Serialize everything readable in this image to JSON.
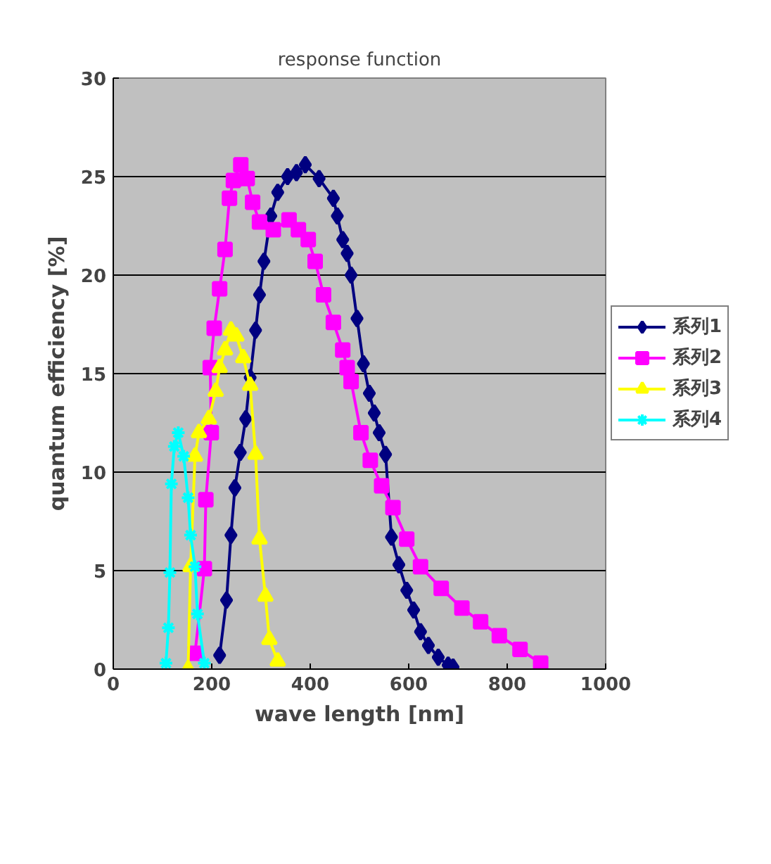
{
  "chart_data": {
    "type": "line",
    "title": "response function",
    "xlabel": "wave length [nm]",
    "ylabel": "quantum efficiency [%]",
    "xlim": [
      0,
      1000
    ],
    "xticks": [
      0,
      200,
      400,
      600,
      800,
      1000
    ],
    "ylim": [
      0,
      30
    ],
    "yticks": [
      0,
      5,
      10,
      15,
      20,
      25,
      30
    ],
    "grid": "y",
    "legend": "right",
    "series": [
      {
        "name": "系列1",
        "color": "#000080",
        "marker": "diamond",
        "x": [
          216,
          230,
          239,
          247,
          258,
          269,
          278,
          289,
          297,
          306,
          320,
          334,
          354,
          372,
          390,
          418,
          447,
          455,
          466,
          475,
          483,
          495,
          508,
          520,
          530,
          540,
          553,
          565,
          580,
          596,
          610,
          624,
          640,
          660,
          680,
          690
        ],
        "values": [
          0.7,
          3.5,
          6.8,
          9.2,
          11,
          12.7,
          14.8,
          17.2,
          19,
          20.7,
          23,
          24.2,
          25,
          25.2,
          25.6,
          24.9,
          23.9,
          23,
          21.8,
          21.1,
          20,
          17.8,
          15.5,
          14,
          13,
          12,
          10.9,
          6.7,
          5.3,
          4,
          3,
          1.9,
          1.2,
          0.6,
          0.2,
          0.1
        ]
      },
      {
        "name": "系列2",
        "color": "#ff00ff",
        "marker": "square",
        "x": [
          166,
          185,
          188,
          199,
          197,
          205,
          216,
          227,
          236,
          244,
          259,
          272,
          283,
          297,
          325,
          357,
          376,
          396,
          410,
          427,
          447,
          466,
          475,
          483,
          503,
          522,
          545,
          568,
          596,
          624,
          666,
          708,
          746,
          784,
          826,
          868
        ],
        "values": [
          0.8,
          5.1,
          8.6,
          12,
          15.3,
          17.3,
          19.3,
          21.3,
          23.9,
          24.8,
          25.6,
          24.9,
          23.7,
          22.7,
          22.3,
          22.8,
          22.3,
          21.8,
          20.7,
          19,
          17.6,
          16.2,
          15.3,
          14.6,
          12,
          10.6,
          9.3,
          8.2,
          6.6,
          5.2,
          4.1,
          3.1,
          2.4,
          1.7,
          1,
          0.3
        ]
      },
      {
        "name": "系列3",
        "color": "#ffff00",
        "marker": "triangle",
        "x": [
          152,
          157,
          166,
          174,
          194,
          208,
          216,
          227,
          239,
          250,
          264,
          278,
          289,
          297,
          309,
          317,
          334
        ],
        "values": [
          0,
          5.2,
          10.8,
          12,
          12.7,
          14.1,
          15.3,
          16.2,
          17.2,
          16.9,
          15.8,
          14.4,
          10.9,
          6.6,
          3.7,
          1.5,
          0.4
        ]
      },
      {
        "name": "系列4",
        "color": "#00ffff",
        "marker": "cross",
        "x": [
          107,
          112,
          115,
          118,
          124,
          132,
          143,
          152,
          157,
          166,
          171,
          185
        ],
        "values": [
          0.3,
          2.1,
          4.9,
          9.4,
          11.3,
          12,
          10.8,
          8.7,
          6.8,
          5.2,
          2.8,
          0.3
        ]
      }
    ]
  }
}
